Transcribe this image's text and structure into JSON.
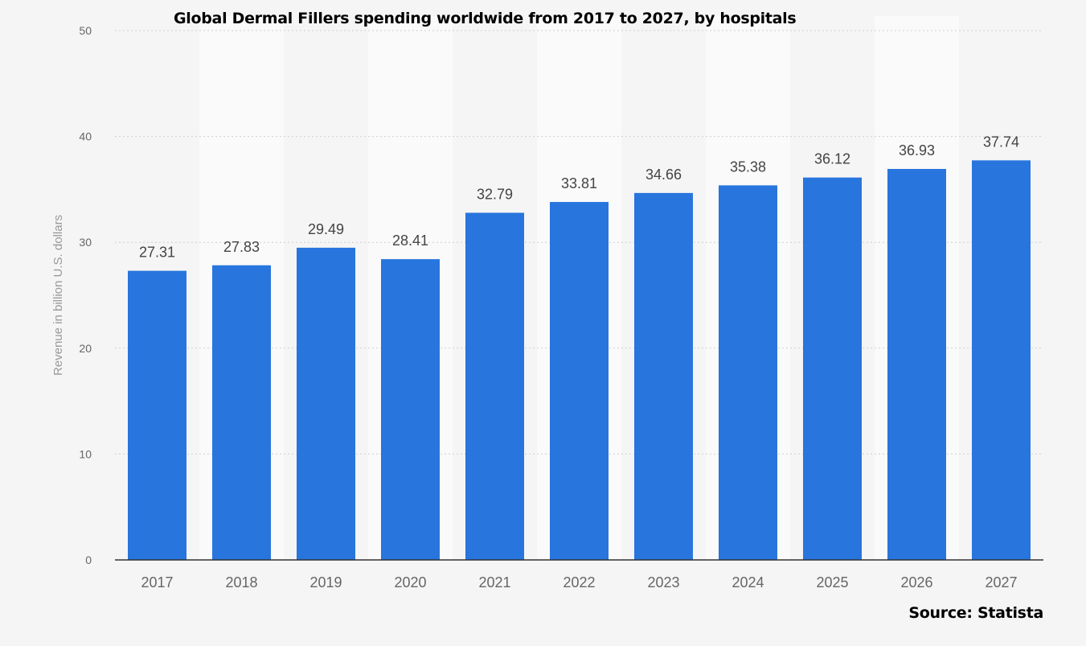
{
  "chart_data": {
    "type": "bar",
    "title": "Global Dermal Fillers spending worldwide from 2017 to 2027, by hospitals",
    "source": "Source: Statista",
    "ylabel": "Revenue in billion U.S. dollars",
    "xlabel": "",
    "ylim": [
      0,
      50
    ],
    "yticks": [
      0,
      10,
      20,
      30,
      40,
      50
    ],
    "grid": true,
    "categories": [
      "2017",
      "2018",
      "2019",
      "2020",
      "2021",
      "2022",
      "2023",
      "2024",
      "2025",
      "2026",
      "2027"
    ],
    "values": [
      27.31,
      27.83,
      29.49,
      28.41,
      32.79,
      33.81,
      34.66,
      35.38,
      36.12,
      36.93,
      37.74
    ],
    "data_labels": [
      "27.31",
      "27.83",
      "29.49",
      "28.41",
      "32.79",
      "33.81",
      "34.66",
      "35.38",
      "36.12",
      "36.93",
      "37.74"
    ],
    "colors": {
      "bar": "#2875de",
      "background": "#f5f5f5",
      "band": "#fafafa",
      "grid": "#cfcfcf",
      "axis": "#333333",
      "tick_text": "#666666",
      "label_text": "#444444",
      "ylabel_text": "#999999"
    }
  }
}
